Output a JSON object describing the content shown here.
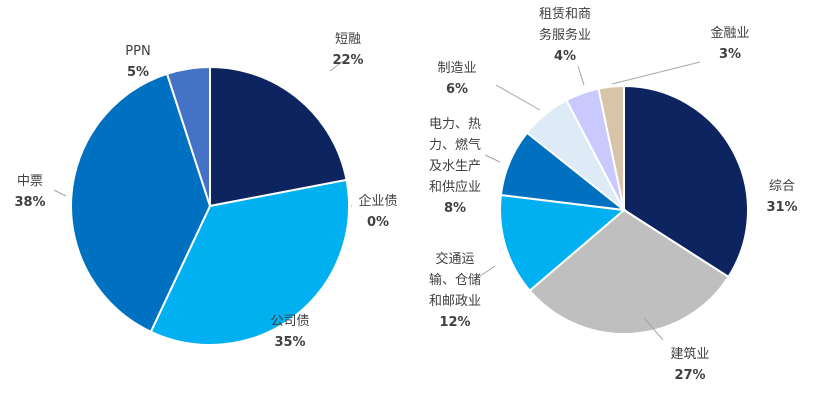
{
  "chart_data": [
    {
      "type": "pie",
      "title": "",
      "slices": [
        {
          "label": "短融",
          "value": 22,
          "pct_label": "22%",
          "color": "#0d2460"
        },
        {
          "label": "企业债",
          "value": 0,
          "pct_label": "0%",
          "color": "#0d2460"
        },
        {
          "label": "公司债",
          "value": 35,
          "pct_label": "35%",
          "color": "#00b0f0"
        },
        {
          "label": "中票",
          "value": 38,
          "pct_label": "38%",
          "color": "#0070c0"
        },
        {
          "label": "PPN",
          "value": 5,
          "pct_label": "5%",
          "color": "#4472c4"
        }
      ]
    },
    {
      "type": "pie",
      "title": "",
      "slices": [
        {
          "label": "综合",
          "value": 31,
          "pct_label": "31%",
          "color": "#0d2460"
        },
        {
          "label": "建筑业",
          "value": 27,
          "pct_label": "27%",
          "color": "#bfbfbf"
        },
        {
          "label": "交通运\n输、仓储\n和邮政业",
          "value": 12,
          "pct_label": "12%",
          "color": "#00b0f0"
        },
        {
          "label": "电力、热\n力、燃气\n及水生产\n和供应业",
          "value": 8,
          "pct_label": "8%",
          "color": "#0070c0"
        },
        {
          "label": "制造业",
          "value": 6,
          "pct_label": "6%",
          "color": "#deebf7"
        },
        {
          "label": "租赁和商\n务服务业",
          "value": 4,
          "pct_label": "4%",
          "color": "#c9c9ff"
        },
        {
          "label": "金融业",
          "value": 3,
          "pct_label": "3%",
          "color": "#d9c3a9"
        }
      ]
    }
  ]
}
